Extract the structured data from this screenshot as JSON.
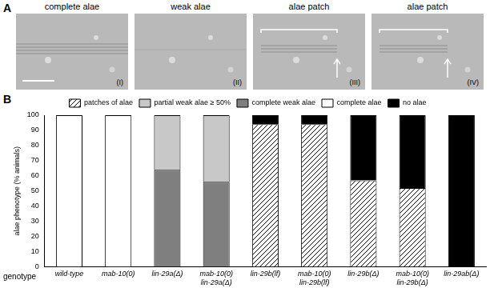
{
  "panel_letters": [
    "A",
    "B"
  ],
  "image_panels": [
    {
      "title": "complete alae",
      "numeral": "(I)"
    },
    {
      "title": "weak alae",
      "numeral": "(II)"
    },
    {
      "title": "alae patch",
      "numeral": "(III)"
    },
    {
      "title": "alae patch",
      "numeral": "(IV)"
    }
  ],
  "chart_data": {
    "type": "bar",
    "stacked": true,
    "legend": "top",
    "grid": false,
    "ylabel": "alae phenotype (% animals)",
    "xlabel": "genotype",
    "categories": [
      "wild-type",
      "mab-10(0)",
      "lin-29a(Δ)",
      "mab-10(0) lin-29a(Δ)",
      "lin-29b(lf)",
      "mab-10(0) lin-29b(lf)",
      "lin-29b(Δ)",
      "mab-10(0) lin-29b(Δ)",
      "lin-29ab(Δ)"
    ],
    "ylim": [
      0,
      100
    ],
    "yticks": [
      0,
      10,
      20,
      30,
      40,
      50,
      60,
      70,
      80,
      90,
      100
    ],
    "series": [
      {
        "name": "patches of alae",
        "color": "#ffffff",
        "line_style": "diagonal",
        "values": [
          0,
          0,
          0,
          0,
          94,
          94,
          57,
          52,
          0
        ]
      },
      {
        "name": "partial weak alae ≥ 50%",
        "color": "#c8c8c8",
        "values": [
          0,
          0,
          36,
          44,
          0,
          0,
          0,
          0,
          0
        ]
      },
      {
        "name": "complete weak alae",
        "color": "#7f7f7f",
        "values": [
          0,
          0,
          64,
          56,
          0,
          0,
          0,
          0,
          0
        ]
      },
      {
        "name": "complete alae",
        "color": "#ffffff",
        "values": [
          100,
          100,
          0,
          0,
          0,
          0,
          0,
          0,
          0
        ]
      },
      {
        "name": "no alae",
        "color": "#000000",
        "values": [
          0,
          0,
          0,
          0,
          6,
          6,
          43,
          48,
          100
        ]
      }
    ]
  }
}
